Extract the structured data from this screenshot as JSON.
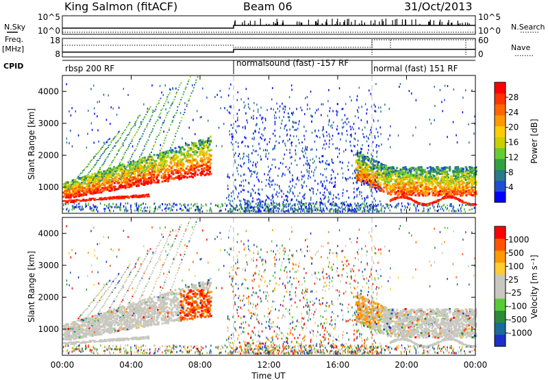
{
  "header": {
    "station": "King Salmon (fitACF)",
    "beam": "Beam 06",
    "date": "31/Oct/2013"
  },
  "status_panel": {
    "nsky_label": "N.Sky",
    "nsearch_label": "N.Search",
    "nsky_ticks": [
      "10^5",
      "10^0"
    ],
    "nsearch_ticks": [
      "10^5",
      "10^0"
    ],
    "freq_label_1": "Freq.",
    "freq_label_2": "[MHz]",
    "freq_ticks": [
      "18",
      "8"
    ],
    "nave_label": "Nave",
    "nave_ticks": [
      "60",
      "0"
    ],
    "cpid_label": "CPID",
    "modes": [
      {
        "label": "rbsp 200 RF",
        "start": 0,
        "end": 10
      },
      {
        "label": "normalsound (fast) -157 RF",
        "start": 10,
        "end": 18
      },
      {
        "label": "normal (fast) 151 RF",
        "start": 18,
        "end": 24
      }
    ]
  },
  "chart_data": [
    {
      "type": "heatmap",
      "parameter": "Power",
      "xlabel": "",
      "ylabel": "Slant Range [km]",
      "xlim": [
        0,
        24
      ],
      "ylim": [
        180,
        4500
      ],
      "yticks": [
        1000,
        2000,
        3000,
        4000
      ],
      "colorbar": {
        "label": "Power [dB]",
        "ticks": [
          "4",
          "8",
          "12",
          "16",
          "20",
          "24",
          "28"
        ],
        "colors": [
          "#0000ff",
          "#1f4fd0",
          "#2a7a8a",
          "#33a040",
          "#66cc33",
          "#c8d000",
          "#ffcc00",
          "#ff9900",
          "#ff6600",
          "#ff3300",
          "#ff0000"
        ]
      }
    },
    {
      "type": "heatmap",
      "parameter": "Velocity",
      "xlabel": "Time UT",
      "ylabel": "Slant Range [km]",
      "xlim": [
        0,
        24
      ],
      "ylim": [
        180,
        4500
      ],
      "yticks": [
        1000,
        2000,
        3000,
        4000
      ],
      "xticks": [
        "00:00",
        "04:00",
        "08:00",
        "12:00",
        "16:00",
        "20:00",
        "00:00"
      ],
      "colorbar": {
        "label": "Velocity [m s⁻¹]",
        "ticks": [
          "1000",
          "500",
          "100",
          "25",
          "-25",
          "-100",
          "-500",
          "-1000"
        ],
        "colors": [
          "#1a30c8",
          "#1a6a9a",
          "#2a8a3a",
          "#55cc33",
          "#c8c8c0",
          "#c8c8c0",
          "#ffcc33",
          "#ff9900",
          "#ff5500",
          "#ff0000"
        ]
      }
    }
  ]
}
